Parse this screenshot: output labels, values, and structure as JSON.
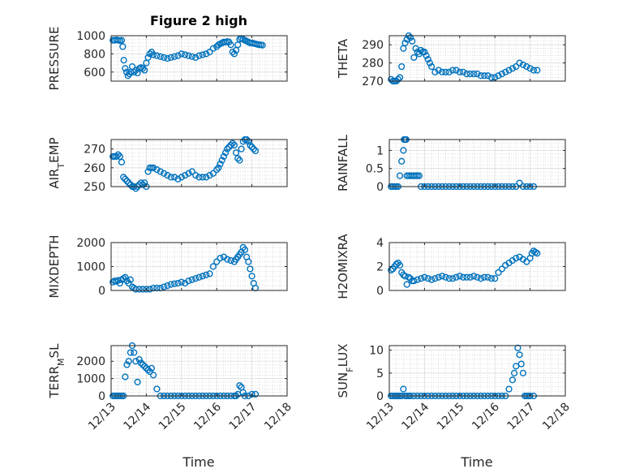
{
  "figure_title": "Figure 2 high",
  "x_label": "Time",
  "x_tick_labels": [
    "12/13",
    "12/14",
    "12/15",
    "12/16",
    "12/17",
    "12/18"
  ],
  "marker_color": "#0072BD",
  "chart_data": [
    {
      "type": "scatter",
      "ylabel": "PRESSURE",
      "title": "Figure 2 high",
      "xlim": [
        13,
        18
      ],
      "ylim": [
        500,
        1000
      ],
      "yticks": [
        600,
        800,
        1000
      ],
      "x": [
        13.05,
        13.1,
        13.15,
        13.2,
        13.25,
        13.3,
        13.33,
        13.36,
        13.4,
        13.44,
        13.48,
        13.52,
        13.56,
        13.6,
        13.65,
        13.7,
        13.75,
        13.8,
        13.85,
        13.9,
        13.95,
        14.0,
        14.05,
        14.1,
        14.15,
        14.2,
        14.3,
        14.4,
        14.5,
        14.6,
        14.7,
        14.8,
        14.9,
        15.0,
        15.1,
        15.2,
        15.3,
        15.4,
        15.5,
        15.6,
        15.7,
        15.8,
        15.9,
        16.0,
        16.05,
        16.1,
        16.15,
        16.2,
        16.25,
        16.3,
        16.35,
        16.4,
        16.45,
        16.5,
        16.55,
        16.6,
        16.65,
        16.7,
        16.75,
        16.8,
        16.85,
        16.9,
        16.95,
        17.0,
        17.05,
        17.1,
        17.15,
        17.2,
        17.25,
        17.3
      ],
      "values": [
        950,
        950,
        955,
        950,
        945,
        950,
        880,
        730,
        640,
        600,
        560,
        580,
        600,
        660,
        600,
        620,
        590,
        640,
        650,
        640,
        620,
        700,
        760,
        800,
        820,
        790,
        780,
        770,
        760,
        750,
        760,
        770,
        780,
        800,
        790,
        780,
        770,
        760,
        780,
        790,
        800,
        820,
        860,
        880,
        900,
        910,
        920,
        930,
        930,
        935,
        930,
        900,
        820,
        800,
        840,
        900,
        960,
        970,
        960,
        950,
        940,
        930,
        920,
        920,
        915,
        910,
        905,
        900,
        900,
        895
      ]
    },
    {
      "type": "scatter",
      "ylabel": "THETA",
      "xlim": [
        13,
        18
      ],
      "ylim": [
        270,
        295
      ],
      "yticks": [
        270,
        280,
        290
      ],
      "x": [
        13.05,
        13.1,
        13.15,
        13.2,
        13.25,
        13.3,
        13.35,
        13.4,
        13.45,
        13.5,
        13.55,
        13.6,
        13.65,
        13.7,
        13.75,
        13.8,
        13.85,
        13.9,
        13.95,
        14.0,
        14.05,
        14.1,
        14.15,
        14.2,
        14.3,
        14.4,
        14.5,
        14.6,
        14.7,
        14.8,
        14.9,
        15.0,
        15.1,
        15.2,
        15.3,
        15.4,
        15.5,
        15.6,
        15.7,
        15.8,
        15.9,
        16.0,
        16.1,
        16.2,
        16.3,
        16.4,
        16.5,
        16.6,
        16.7,
        16.8,
        16.9,
        17.0,
        17.1,
        17.2
      ],
      "values": [
        271,
        270,
        270,
        270,
        271,
        272,
        278,
        288,
        291,
        293,
        295,
        294,
        292,
        283,
        288,
        286,
        285,
        287,
        286,
        286,
        284,
        282,
        280,
        278,
        275,
        276,
        275,
        275,
        275,
        276,
        276,
        275,
        275,
        274,
        274,
        274,
        274,
        273,
        273,
        273,
        272,
        272,
        273,
        274,
        275,
        276,
        277,
        278,
        280,
        279,
        278,
        277,
        276,
        276
      ]
    },
    {
      "type": "scatter",
      "ylabel": "AIR_TEMP",
      "xlim": [
        13,
        18
      ],
      "ylim": [
        250,
        275
      ],
      "yticks": [
        250,
        260,
        270
      ],
      "x": [
        13.05,
        13.1,
        13.15,
        13.2,
        13.25,
        13.3,
        13.35,
        13.4,
        13.45,
        13.5,
        13.55,
        13.6,
        13.65,
        13.7,
        13.75,
        13.8,
        13.85,
        13.9,
        13.95,
        14.0,
        14.05,
        14.1,
        14.15,
        14.2,
        14.3,
        14.4,
        14.5,
        14.6,
        14.7,
        14.8,
        14.9,
        15.0,
        15.1,
        15.2,
        15.3,
        15.4,
        15.5,
        15.6,
        15.7,
        15.8,
        15.9,
        16.0,
        16.05,
        16.1,
        16.15,
        16.2,
        16.25,
        16.3,
        16.35,
        16.4,
        16.45,
        16.5,
        16.55,
        16.6,
        16.65,
        16.7,
        16.75,
        16.8,
        16.85,
        16.9,
        16.95,
        17.0,
        17.05,
        17.1
      ],
      "values": [
        266,
        266,
        266,
        267,
        266,
        263,
        255,
        254,
        253,
        252,
        251,
        250,
        250,
        249,
        250,
        251,
        252,
        251,
        252,
        250,
        258,
        260,
        260,
        260,
        259,
        258,
        257,
        256,
        255,
        255,
        254,
        255,
        256,
        257,
        258,
        256,
        255,
        255,
        255,
        256,
        257,
        259,
        260,
        262,
        264,
        266,
        268,
        270,
        271,
        272,
        273,
        272,
        268,
        265,
        264,
        270,
        274,
        275,
        275,
        274,
        272,
        271,
        270,
        269
      ]
    },
    {
      "type": "scatter",
      "ylabel": "RAINFALL",
      "xlim": [
        13,
        18
      ],
      "ylim": [
        0,
        1.3
      ],
      "yticks": [
        0,
        0.5,
        1
      ],
      "x": [
        13.05,
        13.1,
        13.15,
        13.2,
        13.25,
        13.3,
        13.35,
        13.4,
        13.42,
        13.45,
        13.48,
        13.5,
        13.55,
        13.6,
        13.65,
        13.7,
        13.75,
        13.8,
        13.85,
        13.9,
        14.0,
        14.1,
        14.2,
        14.3,
        14.4,
        14.5,
        14.6,
        14.7,
        14.8,
        14.9,
        15.0,
        15.1,
        15.2,
        15.3,
        15.4,
        15.5,
        15.6,
        15.7,
        15.8,
        15.9,
        16.0,
        16.1,
        16.2,
        16.3,
        16.4,
        16.5,
        16.6,
        16.7,
        16.8,
        16.9,
        17.0,
        17.1
      ],
      "values": [
        0,
        0,
        0,
        0,
        0,
        0.3,
        0.7,
        1.0,
        1.3,
        1.3,
        1.3,
        0.3,
        0.3,
        0.3,
        0.3,
        0.3,
        0.3,
        0.3,
        0.3,
        0,
        0,
        0,
        0,
        0,
        0,
        0,
        0,
        0,
        0,
        0,
        0,
        0,
        0,
        0,
        0,
        0,
        0,
        0,
        0,
        0,
        0,
        0,
        0,
        0,
        0,
        0,
        0,
        0.1,
        0,
        0,
        0,
        0
      ]
    },
    {
      "type": "scatter",
      "ylabel": "MIXDEPTH",
      "xlim": [
        13,
        18
      ],
      "ylim": [
        0,
        2000
      ],
      "yticks": [
        0,
        1000,
        2000
      ],
      "x": [
        13.05,
        13.1,
        13.15,
        13.2,
        13.25,
        13.3,
        13.35,
        13.4,
        13.45,
        13.5,
        13.55,
        13.6,
        13.65,
        13.7,
        13.8,
        13.9,
        14.0,
        14.1,
        14.2,
        14.3,
        14.4,
        14.5,
        14.6,
        14.7,
        14.8,
        14.9,
        15.0,
        15.1,
        15.2,
        15.3,
        15.4,
        15.5,
        15.6,
        15.7,
        15.8,
        15.9,
        16.0,
        16.1,
        16.2,
        16.3,
        16.4,
        16.5,
        16.55,
        16.6,
        16.65,
        16.7,
        16.75,
        16.8,
        16.85,
        16.9,
        16.95,
        17.0,
        17.05,
        17.1
      ],
      "values": [
        350,
        400,
        380,
        420,
        300,
        450,
        500,
        550,
        400,
        300,
        450,
        150,
        100,
        50,
        50,
        50,
        50,
        50,
        100,
        100,
        100,
        150,
        200,
        250,
        280,
        300,
        350,
        300,
        400,
        450,
        500,
        550,
        600,
        650,
        700,
        1000,
        1200,
        1350,
        1400,
        1300,
        1250,
        1200,
        1300,
        1400,
        1500,
        1600,
        1800,
        1700,
        1400,
        1200,
        900,
        600,
        300,
        100
      ]
    },
    {
      "type": "scatter",
      "ylabel": "H2OMIXRA",
      "xlim": [
        13,
        18
      ],
      "ylim": [
        0,
        4
      ],
      "yticks": [
        0,
        2,
        4
      ],
      "x": [
        13.05,
        13.1,
        13.15,
        13.2,
        13.25,
        13.3,
        13.35,
        13.4,
        13.45,
        13.5,
        13.55,
        13.6,
        13.65,
        13.7,
        13.8,
        13.9,
        14.0,
        14.1,
        14.2,
        14.3,
        14.4,
        14.5,
        14.6,
        14.7,
        14.8,
        14.9,
        15.0,
        15.1,
        15.2,
        15.3,
        15.4,
        15.5,
        15.6,
        15.7,
        15.8,
        15.9,
        16.0,
        16.1,
        16.2,
        16.3,
        16.4,
        16.5,
        16.6,
        16.7,
        16.8,
        16.9,
        17.0,
        17.05,
        17.1,
        17.15,
        17.2
      ],
      "values": [
        1.7,
        1.8,
        2.0,
        2.2,
        2.3,
        2.1,
        1.5,
        1.3,
        1.2,
        0.5,
        1.1,
        1.0,
        0.8,
        0.8,
        0.9,
        1.0,
        1.1,
        1.0,
        0.9,
        1.0,
        1.1,
        1.2,
        1.1,
        1.0,
        1.0,
        1.1,
        1.2,
        1.1,
        1.1,
        1.1,
        1.2,
        1.1,
        1.0,
        1.1,
        1.1,
        1.0,
        1.0,
        1.5,
        1.8,
        2.1,
        2.3,
        2.5,
        2.7,
        2.8,
        2.6,
        2.4,
        2.7,
        3.1,
        3.3,
        3.2,
        3.1
      ]
    },
    {
      "type": "scatter",
      "ylabel": "TERR_MSL",
      "xlim": [
        13,
        18
      ],
      "ylim": [
        0,
        2900
      ],
      "yticks": [
        0,
        1000,
        2000
      ],
      "x": [
        13.05,
        13.1,
        13.15,
        13.2,
        13.25,
        13.3,
        13.35,
        13.4,
        13.45,
        13.5,
        13.55,
        13.6,
        13.65,
        13.7,
        13.75,
        13.8,
        13.85,
        13.9,
        13.95,
        14.0,
        14.05,
        14.1,
        14.15,
        14.2,
        14.3,
        14.4,
        14.5,
        14.6,
        14.7,
        14.8,
        14.9,
        15.0,
        15.1,
        15.2,
        15.3,
        15.4,
        15.5,
        15.6,
        15.7,
        15.8,
        15.9,
        16.0,
        16.1,
        16.2,
        16.3,
        16.4,
        16.5,
        16.55,
        16.6,
        16.65,
        16.7,
        16.75,
        16.8,
        16.9,
        17.0,
        17.1
      ],
      "values": [
        0,
        0,
        0,
        0,
        0,
        0,
        0,
        1100,
        1800,
        2000,
        2500,
        2900,
        2500,
        2000,
        800,
        2100,
        1900,
        1800,
        1700,
        1600,
        1500,
        1400,
        1600,
        1200,
        400,
        0,
        0,
        0,
        0,
        0,
        0,
        0,
        0,
        0,
        0,
        0,
        0,
        0,
        0,
        0,
        0,
        0,
        0,
        0,
        0,
        0,
        0,
        0,
        100,
        600,
        500,
        200,
        0,
        0,
        100,
        100
      ]
    },
    {
      "type": "scatter",
      "ylabel": "SUN_FLUX",
      "xlim": [
        13,
        18
      ],
      "ylim": [
        0,
        11
      ],
      "yticks": [
        0,
        5,
        10
      ],
      "x": [
        13.05,
        13.1,
        13.15,
        13.2,
        13.25,
        13.3,
        13.35,
        13.4,
        13.45,
        13.5,
        13.55,
        13.6,
        13.7,
        13.8,
        13.9,
        14.0,
        14.1,
        14.2,
        14.3,
        14.4,
        14.5,
        14.6,
        14.7,
        14.8,
        14.9,
        15.0,
        15.1,
        15.2,
        15.3,
        15.4,
        15.5,
        15.6,
        15.7,
        15.8,
        15.9,
        16.0,
        16.1,
        16.2,
        16.3,
        16.4,
        16.5,
        16.55,
        16.6,
        16.65,
        16.7,
        16.75,
        16.8,
        16.85,
        16.9,
        16.95,
        17.0,
        17.1
      ],
      "values": [
        0,
        0,
        0,
        0,
        0,
        0,
        0,
        1.5,
        0,
        0,
        0,
        0,
        0,
        0,
        0,
        0,
        0,
        0,
        0,
        0,
        0,
        0,
        0,
        0,
        0,
        0,
        0,
        0,
        0,
        0,
        0,
        0,
        0,
        0,
        0,
        0,
        0,
        0,
        0,
        1.5,
        3.5,
        5.0,
        6.5,
        10.5,
        9.0,
        7.0,
        5.0,
        0,
        0,
        0,
        0,
        0
      ]
    }
  ]
}
